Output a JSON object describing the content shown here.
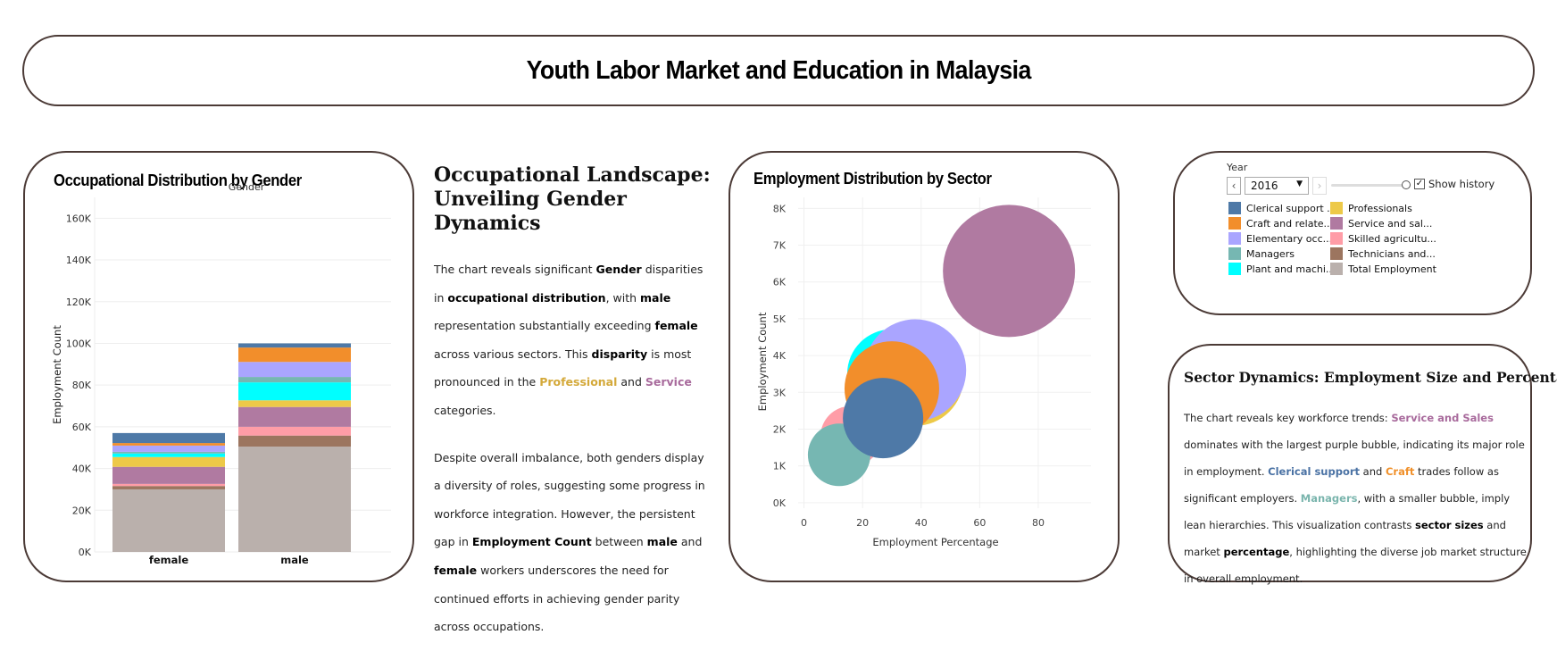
{
  "header": {
    "title": "Youth Labor Market and Education in Malaysia"
  },
  "colors": {
    "Clerical support": "#4e79a7",
    "Craft and related": "#f28e2b",
    "Elementary occupations": "#aaa5ff",
    "Managers": "#76b7b2",
    "Plant and machine": "#00ffff",
    "Professionals": "#edc948",
    "Service and sales": "#b07aa1",
    "Skilled agricultural": "#ff9da7",
    "Technicians and associates": "#9c755f",
    "Total Employment": "#bab0ac"
  },
  "gender_chart": {
    "title": "Occupational Distribution by Gender",
    "legend_title": "Gender",
    "ylabel": "Employment Count",
    "yticks": [
      "0K",
      "20K",
      "40K",
      "60K",
      "80K",
      "100K",
      "120K",
      "140K",
      "160K"
    ],
    "categories": [
      "female",
      "male"
    ]
  },
  "sector_chart": {
    "title": "Employment Distribution by Sector",
    "xlabel": "Employment Percentage",
    "ylabel": "Employment Count",
    "xticks": [
      "0",
      "20",
      "40",
      "60",
      "80"
    ],
    "yticks": [
      "0K",
      "1K",
      "2K",
      "3K",
      "4K",
      "5K",
      "6K",
      "7K",
      "8K"
    ]
  },
  "narrative": {
    "heading": "Occupational Landscape: Unveiling Gender Dynamics",
    "p1": [
      {
        "t": "The chart reveals significant "
      },
      {
        "t": "Gender",
        "s": "b"
      },
      {
        "t": " disparities in "
      },
      {
        "t": "occupational distribution",
        "s": "b"
      },
      {
        "t": ", with "
      },
      {
        "t": "male",
        "s": "b"
      },
      {
        "t": " representation substantially exceeding "
      },
      {
        "t": "female",
        "s": "b"
      },
      {
        "t": " across various sectors. This "
      },
      {
        "t": "disparity",
        "s": "b"
      },
      {
        "t": " is most pronounced in the "
      },
      {
        "t": "Professional",
        "s": "c-prof"
      },
      {
        "t": " and "
      },
      {
        "t": "Service",
        "s": "c-serv"
      },
      {
        "t": " categories."
      }
    ],
    "p2": [
      {
        "t": "Despite overall imbalance, both genders display a diversity of roles, suggesting some progress in workforce integration. However, the persistent gap in "
      },
      {
        "t": "Employment Count",
        "s": "b"
      },
      {
        "t": " between "
      },
      {
        "t": "male",
        "s": "b"
      },
      {
        "t": " and "
      },
      {
        "t": "female",
        "s": "b"
      },
      {
        "t": " workers underscores the need for continued efforts in achieving gender parity across occupations."
      }
    ]
  },
  "controls": {
    "year_label": "Year",
    "year_value": "2016",
    "show_history_label": "Show history",
    "show_history_checked": true,
    "legend": [
      {
        "label": "Clerical support ...",
        "color": "#4e79a7"
      },
      {
        "label": "Professionals",
        "color": "#edc948"
      },
      {
        "label": "Craft and relate...",
        "color": "#f28e2b"
      },
      {
        "label": "Service and sal...",
        "color": "#b07aa1"
      },
      {
        "label": "Elementary occ...",
        "color": "#aaa5ff"
      },
      {
        "label": "Skilled agricultu...",
        "color": "#ff9da7"
      },
      {
        "label": "Managers",
        "color": "#76b7b2"
      },
      {
        "label": "Technicians and...",
        "color": "#9c755f"
      },
      {
        "label": "Plant and machi...",
        "color": "#00ffff"
      },
      {
        "label": "Total Employment",
        "color": "#bab0ac"
      }
    ]
  },
  "dynamics": {
    "heading": "Sector Dynamics: Employment Size and Percentage",
    "text": [
      {
        "t": "The chart reveals key workforce trends: "
      },
      {
        "t": "Service and Sales",
        "s": "c-serv"
      },
      {
        "t": " dominates with the largest purple bubble, indicating its major role in employment. "
      },
      {
        "t": "Clerical support",
        "s": "c-cler"
      },
      {
        "t": " and "
      },
      {
        "t": "Craft",
        "s": "c-craft"
      },
      {
        "t": " trades follow as significant employers. "
      },
      {
        "t": "Managers",
        "s": "c-mgr"
      },
      {
        "t": ", with a smaller bubble, imply lean hierarchies. This visualization contrasts "
      },
      {
        "t": "sector sizes",
        "s": "b"
      },
      {
        "t": " and market "
      },
      {
        "t": "percentage",
        "s": "b"
      },
      {
        "t": ", highlighting the diverse job market structure in overall employment."
      }
    ]
  },
  "chart_data": [
    {
      "type": "bar",
      "stacked": true,
      "title": "Occupational Distribution by Gender",
      "xlabel": "",
      "ylabel": "Employment Count",
      "ylim": [
        0,
        170000
      ],
      "categories": [
        "female",
        "male"
      ],
      "series": [
        {
          "name": "Total Employment",
          "values": [
            30000,
            50500
          ]
        },
        {
          "name": "Technicians and associates",
          "values": [
            1600,
            5300
          ]
        },
        {
          "name": "Skilled agricultural",
          "values": [
            1000,
            4200
          ]
        },
        {
          "name": "Service and sales",
          "values": [
            8200,
            9500
          ]
        },
        {
          "name": "Professionals",
          "values": [
            4700,
            3200
          ]
        },
        {
          "name": "Plant and machine",
          "values": [
            1700,
            8600
          ]
        },
        {
          "name": "Managers",
          "values": [
            800,
            2600
          ]
        },
        {
          "name": "Elementary occupations",
          "values": [
            3000,
            7200
          ]
        },
        {
          "name": "Craft and related",
          "values": [
            1200,
            6900
          ]
        },
        {
          "name": "Clerical support",
          "values": [
            4800,
            2000
          ]
        }
      ]
    },
    {
      "type": "scatter",
      "title": "Employment Distribution by Sector",
      "xlabel": "Employment Percentage",
      "ylabel": "Employment Count",
      "xlim": [
        -2,
        98
      ],
      "ylim": [
        -150,
        8300
      ],
      "points": [
        {
          "name": "Service and sales",
          "x": 70,
          "y": 6300,
          "r": 74
        },
        {
          "name": "Professionals",
          "x": 38,
          "y": 3400,
          "r": 54
        },
        {
          "name": "Plant and machine",
          "x": 30,
          "y": 3500,
          "r": 50
        },
        {
          "name": "Elementary occupations",
          "x": 38,
          "y": 3600,
          "r": 57
        },
        {
          "name": "Craft and related",
          "x": 30,
          "y": 3100,
          "r": 53
        },
        {
          "name": "Skilled agricultural",
          "x": 16,
          "y": 1800,
          "r": 34
        },
        {
          "name": "Technicians and associates",
          "x": 26,
          "y": 2300,
          "r": 36
        },
        {
          "name": "Managers",
          "x": 12,
          "y": 1300,
          "r": 35
        },
        {
          "name": "Clerical support",
          "x": 27,
          "y": 2300,
          "r": 45
        }
      ]
    }
  ]
}
